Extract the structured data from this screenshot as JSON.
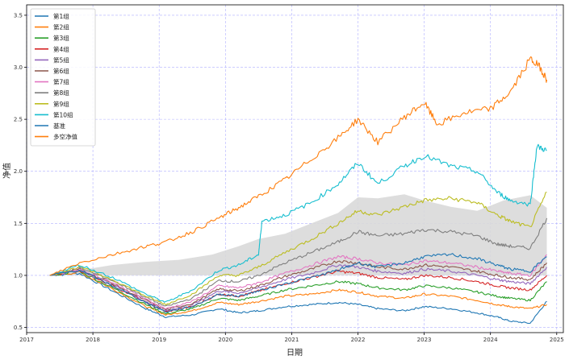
{
  "chart_data": {
    "type": "line",
    "title": "",
    "xlabel": "日期",
    "ylabel": "净值",
    "xlim": [
      2017.0,
      2025.1
    ],
    "ylim": [
      0.45,
      3.6
    ],
    "x_ticks": [
      "2017",
      "2018",
      "2019",
      "2020",
      "2021",
      "2022",
      "2023",
      "2024",
      "2025"
    ],
    "y_ticks": [
      "0.5",
      "1.0",
      "1.5",
      "2.0",
      "2.5",
      "3.0",
      "3.5"
    ],
    "grid": true,
    "legend_position": "top-left",
    "shaded_band": {
      "description": "benchmark range",
      "x": [
        2017.35,
        2017.8,
        2018.3,
        2018.8,
        2019.3,
        2019.8,
        2020.2,
        2020.5,
        2020.9,
        2021.3,
        2021.7,
        2022.0,
        2022.3,
        2022.7,
        2023.0,
        2023.4,
        2023.8,
        2024.2,
        2024.6,
        2024.85
      ],
      "upper": [
        1.0,
        1.05,
        1.1,
        1.13,
        1.15,
        1.2,
        1.28,
        1.35,
        1.4,
        1.5,
        1.6,
        1.75,
        1.74,
        1.78,
        1.72,
        1.66,
        1.62,
        1.72,
        1.77,
        1.65
      ],
      "lower": [
        1.0,
        1.0,
        1.0,
        1.0,
        1.0,
        1.0,
        1.0,
        1.0,
        1.0,
        1.0,
        1.0,
        1.0,
        1.0,
        1.0,
        1.0,
        1.0,
        1.0,
        1.0,
        1.0,
        1.0
      ]
    },
    "series": [
      {
        "name": "第1组",
        "color": "#1f77b4",
        "x": [
          2017.35,
          2017.8,
          2018.3,
          2018.8,
          2019.1,
          2019.5,
          2019.9,
          2020.2,
          2020.5,
          2020.9,
          2021.3,
          2021.7,
          2022.0,
          2022.3,
          2022.7,
          2023.0,
          2023.4,
          2023.8,
          2024.1,
          2024.3,
          2024.6,
          2024.85
        ],
        "values": [
          1.0,
          1.02,
          0.85,
          0.68,
          0.6,
          0.62,
          0.68,
          0.64,
          0.66,
          0.7,
          0.72,
          0.74,
          0.72,
          0.68,
          0.66,
          0.7,
          0.68,
          0.64,
          0.6,
          0.56,
          0.54,
          0.75
        ]
      },
      {
        "name": "第2组",
        "color": "#ff7f0e",
        "x": [
          2017.35,
          2017.8,
          2018.3,
          2018.8,
          2019.1,
          2019.5,
          2019.9,
          2020.2,
          2020.5,
          2020.9,
          2021.3,
          2021.7,
          2022.0,
          2022.3,
          2022.7,
          2023.0,
          2023.4,
          2023.8,
          2024.1,
          2024.3,
          2024.6,
          2024.85
        ],
        "values": [
          1.0,
          1.03,
          0.87,
          0.7,
          0.62,
          0.66,
          0.74,
          0.72,
          0.75,
          0.8,
          0.82,
          0.86,
          0.84,
          0.8,
          0.78,
          0.82,
          0.8,
          0.76,
          0.72,
          0.7,
          0.68,
          0.72
        ]
      },
      {
        "name": "第3组",
        "color": "#2ca02c",
        "x": [
          2017.35,
          2017.8,
          2018.3,
          2018.8,
          2019.1,
          2019.5,
          2019.9,
          2020.2,
          2020.5,
          2020.9,
          2021.3,
          2021.7,
          2022.0,
          2022.3,
          2022.7,
          2023.0,
          2023.4,
          2023.8,
          2024.1,
          2024.3,
          2024.6,
          2024.85
        ],
        "values": [
          1.0,
          1.04,
          0.88,
          0.72,
          0.63,
          0.68,
          0.78,
          0.76,
          0.8,
          0.86,
          0.9,
          0.94,
          0.92,
          0.88,
          0.86,
          0.9,
          0.88,
          0.84,
          0.8,
          0.78,
          0.76,
          0.94
        ]
      },
      {
        "name": "第4组",
        "color": "#d62728",
        "x": [
          2017.35,
          2017.8,
          2018.3,
          2018.8,
          2019.1,
          2019.5,
          2019.9,
          2020.2,
          2020.5,
          2020.9,
          2021.3,
          2021.7,
          2022.0,
          2022.3,
          2022.7,
          2023.0,
          2023.4,
          2023.8,
          2024.1,
          2024.3,
          2024.6,
          2024.85
        ],
        "values": [
          1.0,
          1.05,
          0.9,
          0.74,
          0.65,
          0.7,
          0.82,
          0.8,
          0.85,
          0.92,
          0.98,
          1.04,
          1.02,
          0.98,
          0.96,
          1.0,
          0.98,
          0.94,
          0.9,
          0.88,
          0.86,
          1.0
        ]
      },
      {
        "name": "第5组",
        "color": "#9467bd",
        "x": [
          2017.35,
          2017.8,
          2018.3,
          2018.8,
          2019.1,
          2019.5,
          2019.9,
          2020.2,
          2020.5,
          2020.9,
          2021.3,
          2021.7,
          2022.0,
          2022.3,
          2022.7,
          2023.0,
          2023.4,
          2023.8,
          2024.1,
          2024.3,
          2024.6,
          2024.85
        ],
        "values": [
          1.0,
          1.05,
          0.91,
          0.75,
          0.66,
          0.72,
          0.85,
          0.83,
          0.88,
          0.96,
          1.02,
          1.1,
          1.08,
          1.04,
          1.02,
          1.06,
          1.04,
          1.0,
          0.96,
          0.94,
          0.92,
          1.08
        ]
      },
      {
        "name": "第6组",
        "color": "#8c564b",
        "x": [
          2017.35,
          2017.8,
          2018.3,
          2018.8,
          2019.1,
          2019.5,
          2019.9,
          2020.2,
          2020.5,
          2020.9,
          2021.3,
          2021.7,
          2022.0,
          2022.3,
          2022.7,
          2023.0,
          2023.4,
          2023.8,
          2024.1,
          2024.3,
          2024.6,
          2024.85
        ],
        "values": [
          1.0,
          1.06,
          0.92,
          0.76,
          0.67,
          0.73,
          0.87,
          0.85,
          0.9,
          0.99,
          1.06,
          1.14,
          1.12,
          1.08,
          1.06,
          1.1,
          1.08,
          1.04,
          1.0,
          0.98,
          0.96,
          1.12
        ]
      },
      {
        "name": "第7组",
        "color": "#e377c2",
        "x": [
          2017.35,
          2017.8,
          2018.3,
          2018.8,
          2019.1,
          2019.5,
          2019.9,
          2020.2,
          2020.5,
          2020.9,
          2021.3,
          2021.7,
          2022.0,
          2022.3,
          2022.7,
          2023.0,
          2023.4,
          2023.8,
          2024.1,
          2024.3,
          2024.6,
          2024.85
        ],
        "values": [
          1.0,
          1.06,
          0.93,
          0.77,
          0.68,
          0.75,
          0.9,
          0.88,
          0.93,
          1.02,
          1.1,
          1.18,
          1.16,
          1.12,
          1.1,
          1.14,
          1.12,
          1.08,
          1.04,
          1.02,
          1.0,
          1.2
        ]
      },
      {
        "name": "第8组",
        "color": "#7f7f7f",
        "x": [
          2017.35,
          2017.8,
          2018.3,
          2018.8,
          2019.1,
          2019.5,
          2019.9,
          2020.2,
          2020.5,
          2020.9,
          2021.3,
          2021.7,
          2022.0,
          2022.3,
          2022.7,
          2023.0,
          2023.4,
          2023.8,
          2024.1,
          2024.3,
          2024.6,
          2024.85
        ],
        "values": [
          1.0,
          1.07,
          0.95,
          0.79,
          0.7,
          0.78,
          0.95,
          0.94,
          1.0,
          1.12,
          1.22,
          1.32,
          1.42,
          1.38,
          1.4,
          1.44,
          1.42,
          1.38,
          1.3,
          1.28,
          1.26,
          1.55
        ]
      },
      {
        "name": "第9组",
        "color": "#bcbd22",
        "x": [
          2017.35,
          2017.8,
          2018.3,
          2018.8,
          2019.1,
          2019.5,
          2019.9,
          2020.2,
          2020.5,
          2020.9,
          2021.3,
          2021.7,
          2022.0,
          2022.3,
          2022.7,
          2023.0,
          2023.4,
          2023.8,
          2024.1,
          2024.3,
          2024.6,
          2024.85
        ],
        "values": [
          1.0,
          1.08,
          0.96,
          0.8,
          0.72,
          0.82,
          1.0,
          1.0,
          1.08,
          1.22,
          1.35,
          1.5,
          1.62,
          1.58,
          1.66,
          1.72,
          1.74,
          1.7,
          1.58,
          1.52,
          1.46,
          1.8
        ]
      },
      {
        "name": "第10组",
        "color": "#17becf",
        "x": [
          2017.35,
          2017.8,
          2018.3,
          2018.8,
          2019.1,
          2019.5,
          2019.9,
          2020.2,
          2020.5,
          2020.55,
          2020.9,
          2021.3,
          2021.7,
          2022.0,
          2022.3,
          2022.7,
          2023.0,
          2023.4,
          2023.8,
          2024.1,
          2024.3,
          2024.6,
          2024.7,
          2024.85
        ],
        "values": [
          1.0,
          1.1,
          0.98,
          0.82,
          0.74,
          0.86,
          1.05,
          1.1,
          1.2,
          1.52,
          1.58,
          1.7,
          1.88,
          2.08,
          1.88,
          2.05,
          2.15,
          2.05,
          2.0,
          1.8,
          1.72,
          1.68,
          2.24,
          2.2
        ]
      },
      {
        "name": "基准",
        "color": "#1f77b4",
        "x": [
          2017.35,
          2017.8,
          2018.3,
          2018.8,
          2019.1,
          2019.5,
          2019.9,
          2020.2,
          2020.5,
          2020.9,
          2021.3,
          2021.7,
          2022.0,
          2022.3,
          2022.7,
          2023.0,
          2023.4,
          2023.8,
          2024.1,
          2024.3,
          2024.6,
          2024.85
        ],
        "values": [
          1.0,
          1.05,
          0.9,
          0.74,
          0.65,
          0.7,
          0.82,
          0.8,
          0.85,
          0.92,
          0.98,
          1.05,
          1.12,
          1.08,
          1.12,
          1.18,
          1.2,
          1.16,
          1.1,
          1.06,
          1.04,
          1.18
        ]
      },
      {
        "name": "多空净值",
        "color": "#ff7f0e",
        "x": [
          2017.35,
          2017.8,
          2018.3,
          2018.8,
          2019.1,
          2019.5,
          2019.9,
          2020.2,
          2020.5,
          2020.9,
          2021.3,
          2021.7,
          2022.0,
          2022.3,
          2022.7,
          2023.0,
          2023.2,
          2023.6,
          2024.0,
          2024.3,
          2024.6,
          2024.75,
          2024.85
        ],
        "values": [
          1.0,
          1.12,
          1.2,
          1.28,
          1.32,
          1.42,
          1.55,
          1.65,
          1.76,
          1.92,
          2.12,
          2.32,
          2.5,
          2.28,
          2.52,
          2.66,
          2.45,
          2.56,
          2.6,
          2.76,
          3.08,
          3.0,
          2.88
        ]
      }
    ]
  }
}
